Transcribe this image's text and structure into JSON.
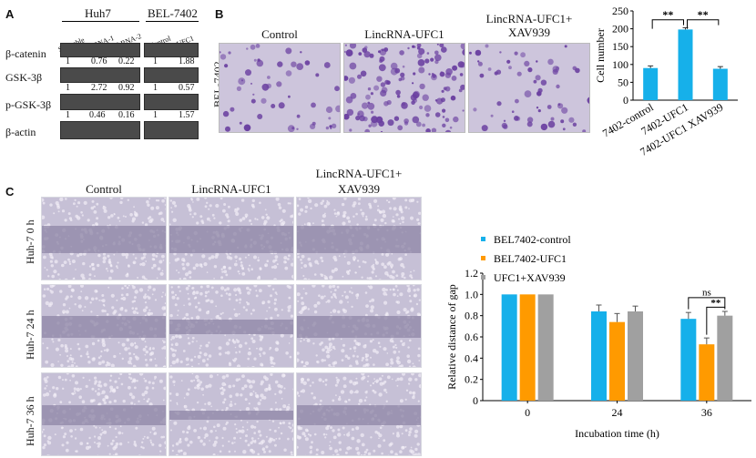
{
  "panelA": {
    "letter": "A",
    "huh7_label": "Huh7",
    "bel_label": "BEL-7402",
    "lanes": [
      "Scramble",
      "shRNA-1",
      "shRNA-2",
      "Control",
      "UFC1"
    ],
    "rows": [
      {
        "label": "β-catenin",
        "values": [
          "1",
          "0.76",
          "0.22",
          "1",
          "1.88"
        ]
      },
      {
        "label": "GSK-3β",
        "values": [
          "1",
          "2.72",
          "0.92",
          "1",
          "0.57"
        ]
      },
      {
        "label": "p-GSK-3β",
        "values": [
          "1",
          "0.46",
          "0.16",
          "1",
          "1.57"
        ]
      },
      {
        "label": "β-actin",
        "values": []
      }
    ]
  },
  "panelB": {
    "letter": "B",
    "side_label": "BEL-7402",
    "columns": [
      "Control",
      "LincRNA-UFC1",
      "LincRNA-UFC1+\nXAV939"
    ],
    "chart_data": {
      "type": "bar",
      "categories": [
        "7402-control",
        "7402-UFC1",
        "7402-UFC1 XAV939"
      ],
      "values": [
        90,
        198,
        88
      ],
      "errors": [
        6,
        5,
        6
      ],
      "ylabel": "Cell number",
      "ylim": [
        0,
        250
      ],
      "yticks": [
        0,
        50,
        100,
        150,
        200,
        250
      ],
      "color": "#16b0ea",
      "significance": [
        "**",
        "**"
      ]
    }
  },
  "panelC": {
    "letter": "C",
    "columns": [
      "Control",
      "LincRNA-UFC1",
      "LincRNA-UFC1+\nXAV939"
    ],
    "rows": [
      "Huh-7 0 h",
      "Huh-7 24 h",
      "Huh-7 36 h"
    ],
    "chart_data": {
      "type": "bar",
      "categories": [
        "0",
        "24",
        "36"
      ],
      "series": [
        {
          "name": "BEL7402-control",
          "values": [
            1.0,
            0.84,
            0.77
          ],
          "errors": [
            0,
            0.06,
            0.06
          ],
          "color": "#16b0ea"
        },
        {
          "name": "BEL7402-UFC1",
          "values": [
            1.0,
            0.74,
            0.53
          ],
          "errors": [
            0,
            0.08,
            0.06
          ],
          "color": "#ff9a00"
        },
        {
          "name": "UFC1+XAV939",
          "values": [
            1.0,
            0.84,
            0.8
          ],
          "errors": [
            0,
            0.05,
            0.04
          ],
          "color": "#a0a0a0"
        }
      ],
      "xlabel": "Incubation time (h)",
      "ylabel": "Relative distance of gap",
      "ylim": [
        0,
        1.2
      ],
      "yticks": [
        "0",
        "0.2",
        "0.4",
        "0.6",
        "0.8",
        "1.0",
        "1.2"
      ],
      "significance": [
        "ns",
        "**"
      ]
    }
  }
}
